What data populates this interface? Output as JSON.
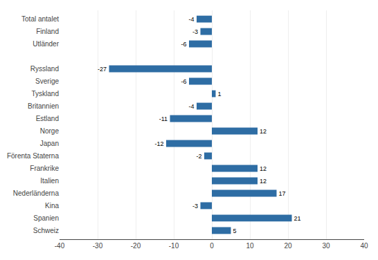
{
  "chart_data": {
    "type": "bar",
    "orientation": "horizontal",
    "categories": [
      "Schweiz",
      "Spanien",
      "Kina",
      "Nederländerna",
      "Italien",
      "Frankrike",
      "Förenta Staterna",
      "Japan",
      "Norge",
      "Estland",
      "Britannien",
      "Tyskland",
      "Sverige",
      "Ryssland",
      null,
      "Utländer",
      "Finland",
      "Total antalet"
    ],
    "values": [
      5,
      21,
      -3,
      17,
      12,
      12,
      -2,
      -12,
      12,
      -11,
      -4,
      1,
      -6,
      -27,
      null,
      -6,
      -3,
      -4
    ],
    "color": "#2E6DA4",
    "xlim": [
      -40,
      40
    ],
    "xticks": [
      -40,
      -30,
      -20,
      -10,
      0,
      10,
      20,
      30,
      40
    ],
    "grid": true,
    "data_labels": true
  }
}
